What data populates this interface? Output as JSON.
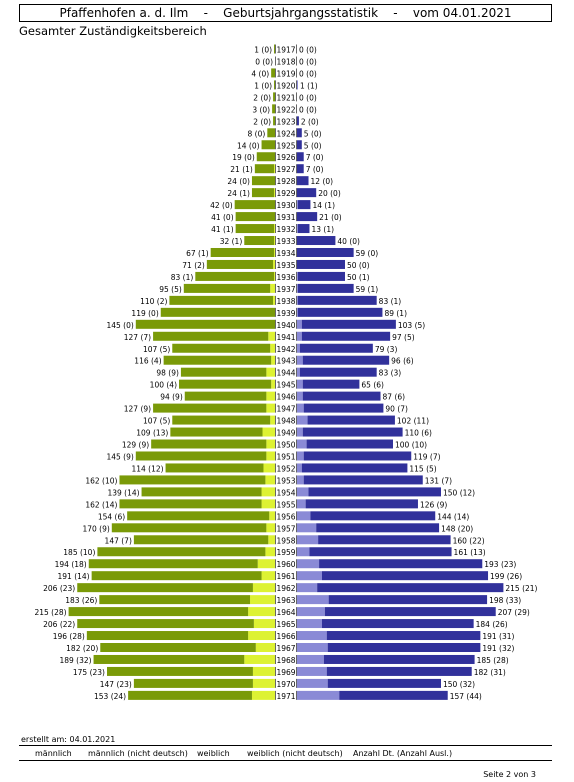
{
  "header": {
    "title": "Pfaffenhofen a. d. Ilm    -    Geburtsjahrgangsstatistik    -    vom 04.01.2021",
    "subtitle": "Gesamter Zuständigkeitsbereich"
  },
  "footer": {
    "created": "erstellt am: 04.01.2021",
    "legend": [
      "männlich",
      "männlich (nicht deutsch)",
      "weiblich",
      "weiblich (nicht deutsch)",
      "Anzahl Dt. (Anzahl Ausl.)"
    ],
    "page": "Seite 2 von   3"
  },
  "colors": {
    "male": "#7a9a08",
    "male_foreign": "#ddf233",
    "female": "#31319b",
    "female_foreign": "#8a8ad6"
  },
  "chart_data": {
    "type": "bar",
    "title": "Geburtsjahrgangsstatistik",
    "categories": [
      "1917",
      "1918",
      "1919",
      "1920",
      "1921",
      "1922",
      "1923",
      "1924",
      "1925",
      "1926",
      "1927",
      "1928",
      "1929",
      "1930",
      "1931",
      "1932",
      "1933",
      "1934",
      "1935",
      "1936",
      "1937",
      "1938",
      "1939",
      "1940",
      "1941",
      "1942",
      "1943",
      "1944",
      "1945",
      "1946",
      "1947",
      "1948",
      "1949",
      "1950",
      "1951",
      "1952",
      "1953",
      "1954",
      "1955",
      "1956",
      "1957",
      "1958",
      "1959",
      "1960",
      "1961",
      "1962",
      "1963",
      "1964",
      "1965",
      "1966",
      "1967",
      "1968",
      "1969",
      "1970",
      "1971"
    ],
    "male_total": [
      1,
      0,
      4,
      1,
      2,
      3,
      2,
      8,
      14,
      19,
      21,
      24,
      24,
      42,
      41,
      41,
      32,
      67,
      71,
      83,
      95,
      110,
      119,
      145,
      127,
      107,
      116,
      98,
      100,
      94,
      127,
      107,
      109,
      129,
      145,
      114,
      162,
      139,
      162,
      154,
      170,
      147,
      185,
      194,
      191,
      206,
      183,
      215,
      206,
      196,
      182,
      189,
      175,
      147,
      153
    ],
    "male_foreign": [
      0,
      0,
      0,
      0,
      0,
      0,
      0,
      0,
      0,
      0,
      1,
      0,
      1,
      0,
      0,
      1,
      1,
      1,
      2,
      1,
      5,
      2,
      0,
      0,
      7,
      5,
      4,
      9,
      4,
      9,
      9,
      5,
      13,
      9,
      9,
      12,
      10,
      14,
      14,
      6,
      9,
      7,
      10,
      18,
      14,
      23,
      26,
      28,
      22,
      28,
      20,
      32,
      23,
      23,
      24
    ],
    "female_total": [
      0,
      0,
      0,
      1,
      0,
      0,
      2,
      5,
      5,
      7,
      7,
      12,
      20,
      14,
      21,
      13,
      40,
      59,
      50,
      50,
      59,
      83,
      89,
      103,
      97,
      79,
      96,
      83,
      65,
      87,
      90,
      102,
      110,
      100,
      119,
      115,
      131,
      150,
      126,
      144,
      148,
      160,
      161,
      193,
      199,
      215,
      198,
      207,
      184,
      191,
      191,
      185,
      182,
      150,
      157
    ],
    "female_foreign": [
      0,
      0,
      0,
      1,
      0,
      0,
      0,
      0,
      0,
      0,
      0,
      0,
      0,
      1,
      0,
      1,
      0,
      0,
      0,
      1,
      1,
      1,
      1,
      5,
      5,
      3,
      6,
      3,
      6,
      6,
      7,
      11,
      6,
      10,
      7,
      5,
      7,
      12,
      9,
      14,
      20,
      22,
      13,
      23,
      26,
      21,
      33,
      29,
      26,
      31,
      32,
      28,
      31,
      32,
      44
    ]
  }
}
